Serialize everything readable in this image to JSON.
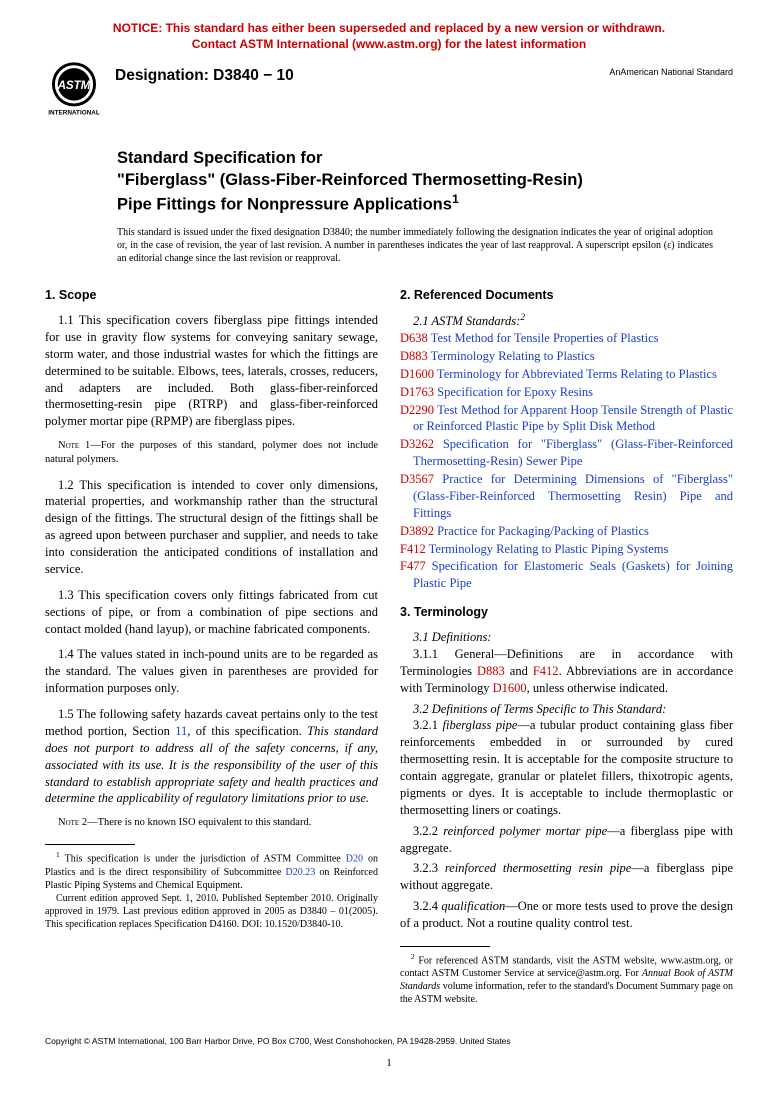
{
  "notice": {
    "line1": "NOTICE: This standard has either been superseded and replaced by a new version or withdrawn.",
    "line2": "Contact ASTM International (www.astm.org) for the latest information"
  },
  "header": {
    "designation_label": "Designation: D3840 − 10",
    "ans_label": "AnAmerican National Standard"
  },
  "title": {
    "line1": "Standard Specification for",
    "line2": "\"Fiberglass\" (Glass-Fiber-Reinforced Thermosetting-Resin)",
    "line3": "Pipe Fittings for Nonpressure Applications"
  },
  "issuance": "This standard is issued under the fixed designation D3840; the number immediately following the designation indicates the year of original adoption or, in the case of revision, the year of last revision. A number in parentheses indicates the year of last reapproval. A superscript epsilon (ε) indicates an editorial change since the last revision or reapproval.",
  "scope": {
    "head": "1. Scope",
    "p1": "1.1 This specification covers fiberglass pipe fittings intended for use in gravity flow systems for conveying sanitary sewage, storm water, and those industrial wastes for which the fittings are determined to be suitable. Elbows, tees, laterals, crosses, reducers, and adapters are included. Both glass-fiber-reinforced thermosetting-resin pipe (RTRP) and glass-fiber-reinforced polymer mortar pipe (RPMP) are fiberglass pipes.",
    "note1_label": "Note 1",
    "note1": "—For the purposes of this standard, polymer does not include natural polymers.",
    "p2": "1.2 This specification is intended to cover only dimensions, material properties, and workmanship rather than the structural design of the fittings. The structural design of the fittings shall be as agreed upon between purchaser and supplier, and needs to take into consideration the anticipated conditions of installation and service.",
    "p3": "1.3 This specification covers only fittings fabricated from cut sections of pipe, or from a combination of pipe sections and contact molded (hand layup), or machine fabricated components.",
    "p4": "1.4 The values stated in inch-pound units are to be regarded as the standard. The values given in parentheses are provided for information purposes only.",
    "p5_a": "1.5 The following safety hazards caveat pertains only to the test method portion, Section ",
    "p5_link": "11",
    "p5_b": ", of this specification. ",
    "p5_italic": "This standard does not purport to address all of the safety concerns, if any, associated with its use. It is the responsibility of the user of this standard to establish appropriate safety and health practices and determine the applicability of regulatory limitations prior to use.",
    "note2_label": "Note 2",
    "note2": "—There is no known ISO equivalent to this standard."
  },
  "refs": {
    "head": "2. Referenced Documents",
    "sub": "2.1 ASTM Standards:",
    "items": [
      {
        "code": "D638",
        "title": "Test Method for Tensile Properties of Plastics"
      },
      {
        "code": "D883",
        "title": "Terminology Relating to Plastics"
      },
      {
        "code": "D1600",
        "title": "Terminology for Abbreviated Terms Relating to Plastics"
      },
      {
        "code": "D1763",
        "title": "Specification for Epoxy Resins"
      },
      {
        "code": "D2290",
        "title": "Test Method for Apparent Hoop Tensile Strength of Plastic or Reinforced Plastic Pipe by Split Disk Method"
      },
      {
        "code": "D3262",
        "title": "Specification for \"Fiberglass\" (Glass-Fiber-Reinforced Thermosetting-Resin) Sewer Pipe"
      },
      {
        "code": "D3567",
        "title": "Practice for Determining Dimensions of \"Fiberglass\" (Glass-Fiber-Reinforced Thermosetting Resin) Pipe and Fittings"
      },
      {
        "code": "D3892",
        "title": "Practice for Packaging/Packing of Plastics"
      },
      {
        "code": "F412",
        "title": "Terminology Relating to Plastic Piping Systems"
      },
      {
        "code": "F477",
        "title": "Specification for Elastomeric Seals (Gaskets) for Joining Plastic Pipe"
      }
    ]
  },
  "term": {
    "head": "3. Terminology",
    "d31": "3.1 Definitions:",
    "d311_a": "3.1.1 General—Definitions are in accordance with Terminologies ",
    "d311_l1": "D883",
    "d311_b": " and ",
    "d311_l2": "F412",
    "d311_c": ". Abbreviations are in accordance with Terminology ",
    "d311_l3": "D1600",
    "d311_d": ", unless otherwise indicated.",
    "d32": "3.2 Definitions of Terms Specific to This Standard:",
    "d321_num": "3.2.1 ",
    "d321_term": "fiberglass pipe",
    "d321_body": "—a tubular product containing glass fiber reinforcements embedded in or surrounded by cured thermosetting resin. It is acceptable for the composite structure to contain aggregate, granular or platelet fillers, thixotropic agents, pigments or dyes. It is acceptable to include thermoplastic or thermosetting liners or coatings.",
    "d322_num": "3.2.2 ",
    "d322_term": "reinforced polymer mortar pipe",
    "d322_body": "—a fiberglass pipe with aggregate.",
    "d323_num": "3.2.3 ",
    "d323_term": "reinforced thermosetting resin pipe",
    "d323_body": "—a fiberglass pipe without aggregate.",
    "d324_num": "3.2.4 ",
    "d324_term": "qualification",
    "d324_body": "—One or more tests used to prove the design of a product. Not a routine quality control test."
  },
  "footnotes": {
    "f1_a": "This specification is under the jurisdiction of ASTM Committee ",
    "f1_l1": "D20",
    "f1_b": " on Plastics and is the direct responsibility of Subcommittee ",
    "f1_l2": "D20.23",
    "f1_c": " on Reinforced Plastic Piping Systems and Chemical Equipment.",
    "f1_p2": "Current edition approved Sept. 1, 2010. Published September 2010. Originally approved in 1979. Last previous edition approved in 2005 as D3840 – 01(2005). This specification replaces Specification D4160. DOI: 10.1520/D3840-10.",
    "f2_a": "For referenced ASTM standards, visit the ASTM website, www.astm.org, or contact ASTM Customer Service at service@astm.org. For ",
    "f2_i": "Annual Book of ASTM Standards",
    "f2_b": " volume information, refer to the standard's Document Summary page on the ASTM website."
  },
  "copyright": "Copyright © ASTM International, 100 Barr Harbor Drive, PO Box C700, West Conshohocken, PA 19428-2959. United States",
  "page_num": "1",
  "colors": {
    "notice": "#cc0000",
    "ref_code": "#cc0000",
    "link": "#1a3fc4",
    "text": "#000000",
    "bg": "#ffffff"
  }
}
